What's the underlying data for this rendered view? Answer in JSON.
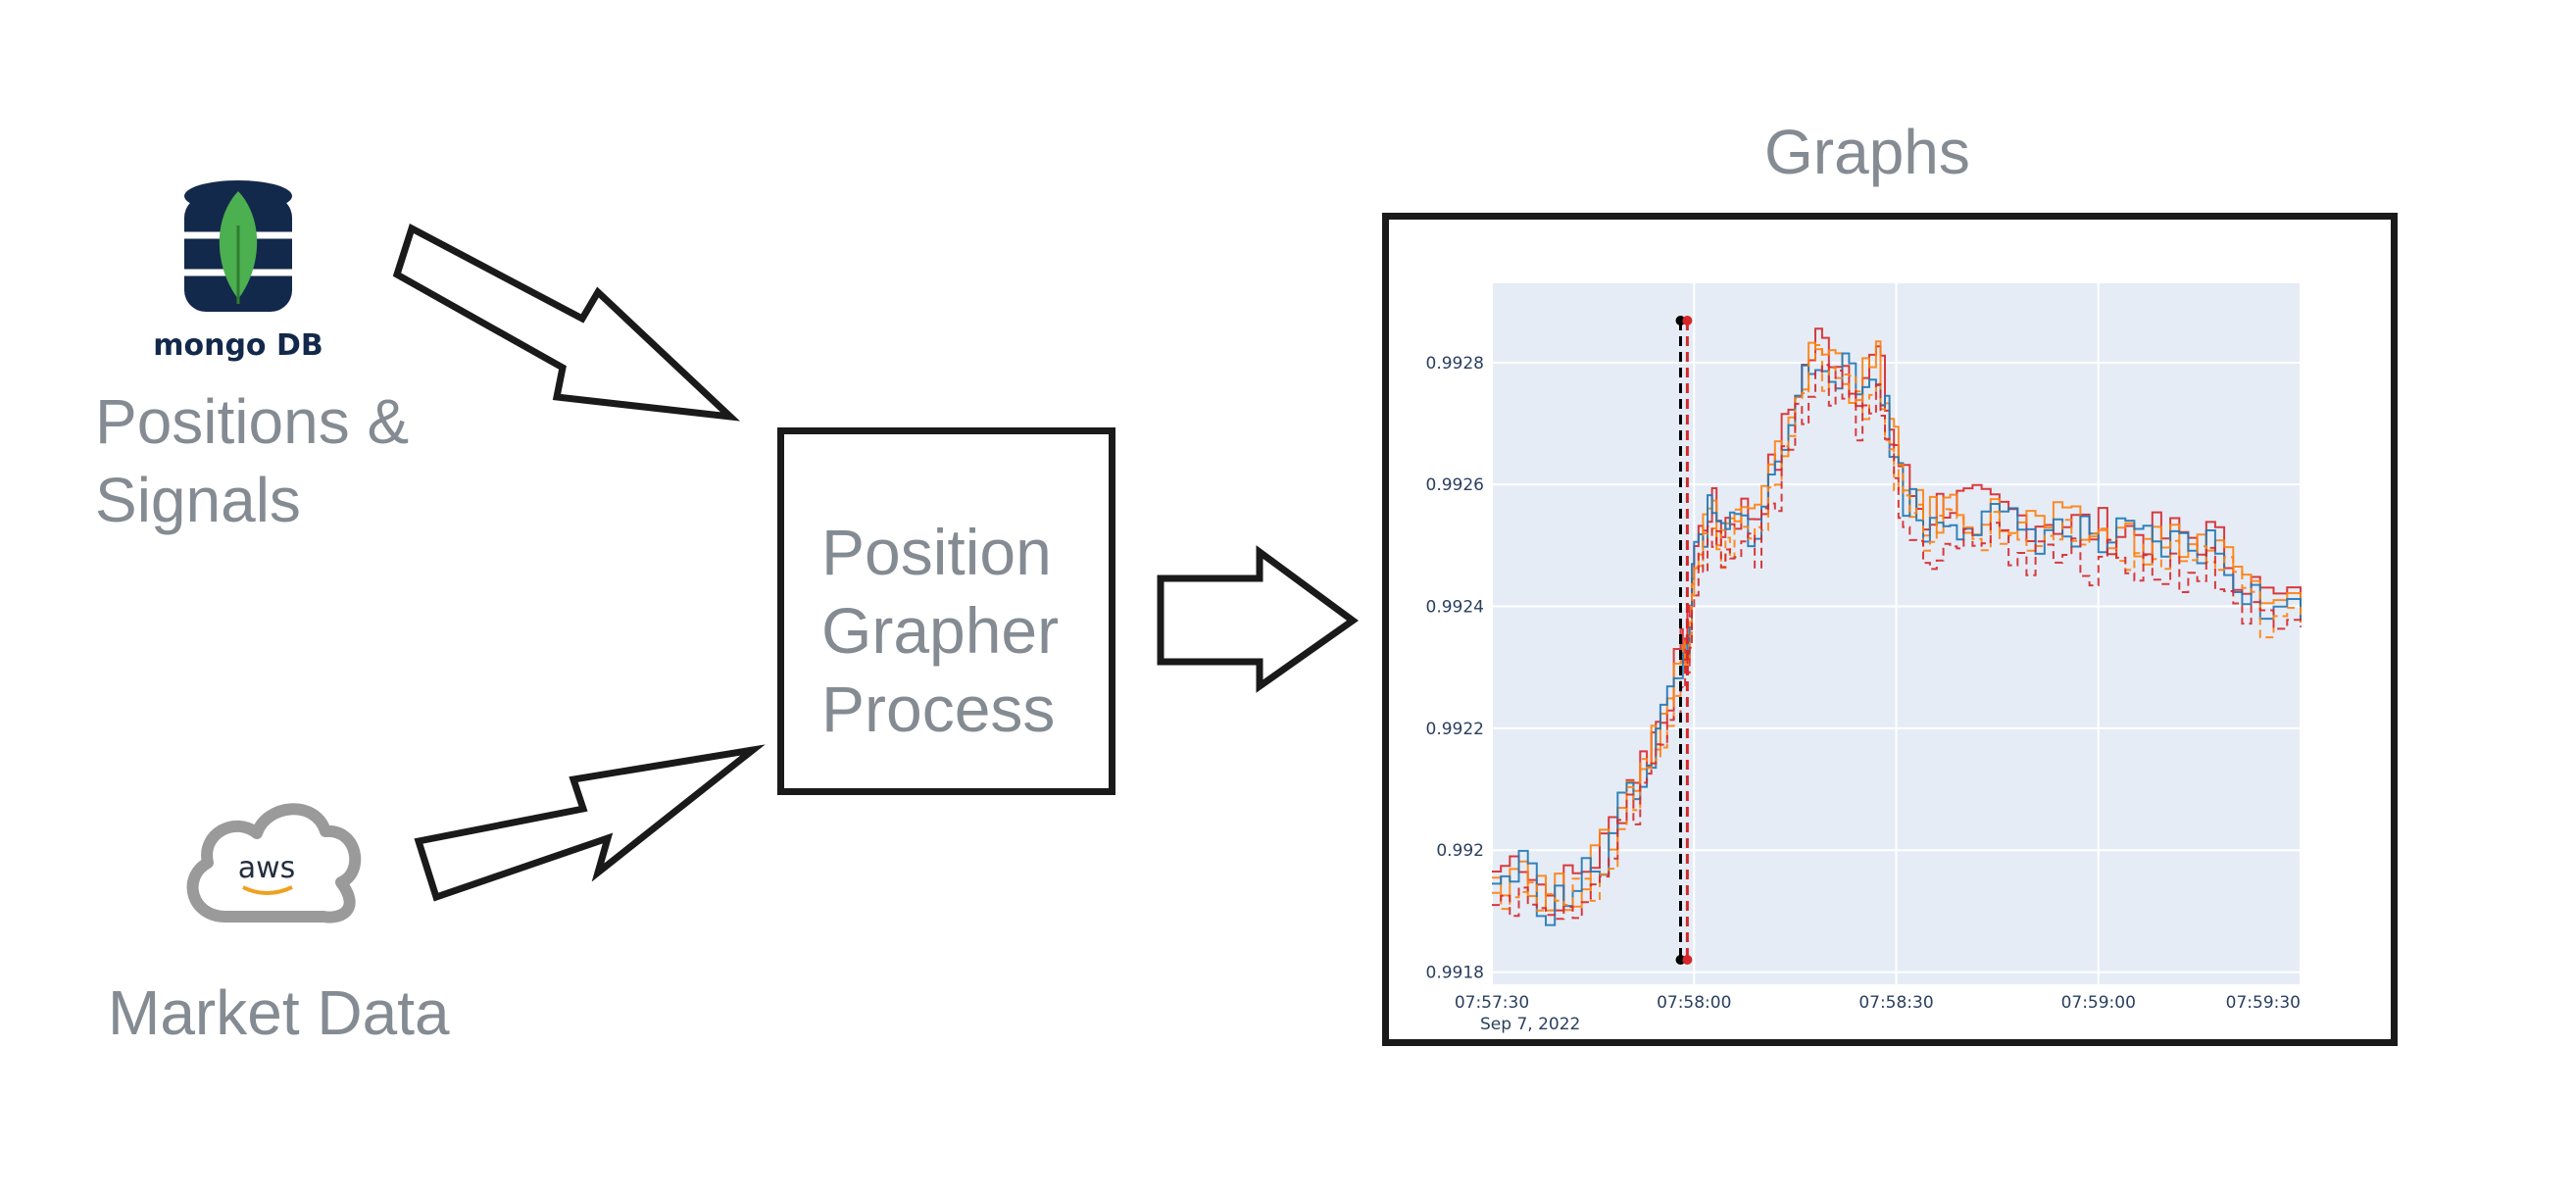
{
  "sources": {
    "positions_label": "Positions & Signals",
    "mongo_logo_text": "mongo DB",
    "market_label": "Market Data",
    "aws_logo_text": "aws",
    "mongo_icon": "database-leaf-icon",
    "aws_icon": "cloud-icon"
  },
  "process": {
    "label": "Position Grapher Process"
  },
  "output": {
    "title": "Graphs"
  },
  "colors": {
    "text": "#858b92",
    "arrow": "#1a1a1a",
    "plot_bg": "#e5ecf6",
    "mongo_navy": "#13294b",
    "mongo_green": "#4caf50"
  },
  "chart_data": {
    "type": "line",
    "title": "",
    "xlabel": "",
    "ylabel": "",
    "x_ticks": [
      "07:57:30",
      "07:58:00",
      "07:58:30",
      "07:59:00",
      "07:59:30"
    ],
    "x_tick_sublabel": "Sep 7, 2022",
    "y_ticks": [
      "0.9918",
      "0.992",
      "0.9922",
      "0.9924",
      "0.9926",
      "0.9928"
    ],
    "ylim": [
      0.99178,
      0.99293
    ],
    "vertical_markers": [
      {
        "x": "07:57:58",
        "color": "#000000",
        "style": "dashed"
      },
      {
        "x": "07:57:59",
        "color": "#d62728",
        "style": "dashed"
      }
    ],
    "series": [
      {
        "color": "#d62728",
        "style": "solid",
        "offset": 1.5e-05,
        "values": [
          [
            "07:57:30",
            0.99195
          ],
          [
            "07:57:34",
            0.99198
          ],
          [
            "07:57:38",
            0.99191
          ],
          [
            "07:57:42",
            0.99194
          ],
          [
            "07:57:46",
            0.99199
          ],
          [
            "07:57:50",
            0.9921
          ],
          [
            "07:57:53",
            0.99215
          ],
          [
            "07:57:55",
            0.99222
          ],
          [
            "07:57:58",
            0.99231
          ],
          [
            "07:57:59",
            0.99235
          ],
          [
            "07:58:00",
            0.99248
          ],
          [
            "07:58:02",
            0.99255
          ],
          [
            "07:58:04",
            0.99252
          ],
          [
            "07:58:06",
            0.99254
          ],
          [
            "07:58:09",
            0.99254
          ],
          [
            "07:58:12",
            0.99263
          ],
          [
            "07:58:15",
            0.99275
          ],
          [
            "07:58:18",
            0.99282
          ],
          [
            "07:58:21",
            0.9928
          ],
          [
            "07:58:24",
            0.99275
          ],
          [
            "07:58:27",
            0.9928
          ],
          [
            "07:58:29",
            0.99268
          ],
          [
            "07:58:31",
            0.99259
          ],
          [
            "07:58:34",
            0.99253
          ],
          [
            "07:58:37",
            0.99256
          ],
          [
            "07:58:40",
            0.99255
          ],
          [
            "07:58:44",
            0.99254
          ],
          [
            "07:58:48",
            0.99253
          ],
          [
            "07:58:52",
            0.99253
          ],
          [
            "07:58:56",
            0.99252
          ],
          [
            "07:59:00",
            0.99251
          ],
          [
            "07:59:04",
            0.99251
          ],
          [
            "07:59:08",
            0.9925
          ],
          [
            "07:59:12",
            0.9925
          ],
          [
            "07:59:16",
            0.9925
          ],
          [
            "07:59:20",
            0.99245
          ],
          [
            "07:59:24",
            0.9924
          ],
          [
            "07:59:30",
            0.99238
          ]
        ]
      },
      {
        "color": "#ff7f0e",
        "style": "solid",
        "offset": 5e-06,
        "values": [
          [
            "07:57:30",
            0.99195
          ],
          [
            "07:57:34",
            0.99198
          ],
          [
            "07:57:38",
            0.99191
          ],
          [
            "07:57:42",
            0.99194
          ],
          [
            "07:57:46",
            0.99199
          ],
          [
            "07:57:50",
            0.9921
          ],
          [
            "07:57:53",
            0.99215
          ],
          [
            "07:57:55",
            0.99222
          ],
          [
            "07:57:58",
            0.99231
          ],
          [
            "07:57:59",
            0.99235
          ],
          [
            "07:58:00",
            0.99248
          ],
          [
            "07:58:02",
            0.99255
          ],
          [
            "07:58:04",
            0.99252
          ],
          [
            "07:58:06",
            0.99254
          ],
          [
            "07:58:09",
            0.99254
          ],
          [
            "07:58:12",
            0.99263
          ],
          [
            "07:58:15",
            0.99275
          ],
          [
            "07:58:18",
            0.99282
          ],
          [
            "07:58:21",
            0.9928
          ],
          [
            "07:58:24",
            0.99275
          ],
          [
            "07:58:27",
            0.9928
          ],
          [
            "07:58:29",
            0.99268
          ],
          [
            "07:58:31",
            0.99259
          ],
          [
            "07:58:34",
            0.99253
          ],
          [
            "07:58:37",
            0.99256
          ],
          [
            "07:58:40",
            0.99255
          ],
          [
            "07:58:44",
            0.99254
          ],
          [
            "07:58:48",
            0.99253
          ],
          [
            "07:58:52",
            0.99253
          ],
          [
            "07:58:56",
            0.99252
          ],
          [
            "07:59:00",
            0.99251
          ],
          [
            "07:59:04",
            0.99251
          ],
          [
            "07:59:08",
            0.9925
          ],
          [
            "07:59:12",
            0.9925
          ],
          [
            "07:59:16",
            0.9925
          ],
          [
            "07:59:20",
            0.99245
          ],
          [
            "07:59:24",
            0.9924
          ],
          [
            "07:59:30",
            0.99238
          ]
        ]
      },
      {
        "color": "#1f77b4",
        "style": "solid",
        "offset": -5e-06,
        "values": [
          [
            "07:57:30",
            0.99195
          ],
          [
            "07:57:34",
            0.99198
          ],
          [
            "07:57:38",
            0.99191
          ],
          [
            "07:57:42",
            0.99194
          ],
          [
            "07:57:46",
            0.99199
          ],
          [
            "07:57:50",
            0.9921
          ],
          [
            "07:57:53",
            0.99215
          ],
          [
            "07:57:55",
            0.99222
          ],
          [
            "07:57:58",
            0.99231
          ],
          [
            "07:57:59",
            0.99235
          ],
          [
            "07:58:00",
            0.99248
          ],
          [
            "07:58:02",
            0.99255
          ],
          [
            "07:58:04",
            0.99252
          ],
          [
            "07:58:06",
            0.99254
          ],
          [
            "07:58:09",
            0.99254
          ],
          [
            "07:58:12",
            0.99263
          ],
          [
            "07:58:15",
            0.99275
          ],
          [
            "07:58:18",
            0.99282
          ],
          [
            "07:58:21",
            0.9928
          ],
          [
            "07:58:24",
            0.99275
          ],
          [
            "07:58:27",
            0.9928
          ],
          [
            "07:58:29",
            0.99268
          ],
          [
            "07:58:31",
            0.99259
          ],
          [
            "07:58:34",
            0.99253
          ],
          [
            "07:58:37",
            0.99256
          ],
          [
            "07:58:40",
            0.99255
          ],
          [
            "07:58:44",
            0.99254
          ],
          [
            "07:58:48",
            0.99253
          ],
          [
            "07:58:52",
            0.99253
          ],
          [
            "07:58:56",
            0.99252
          ],
          [
            "07:59:00",
            0.99251
          ],
          [
            "07:59:04",
            0.99251
          ],
          [
            "07:59:08",
            0.9925
          ],
          [
            "07:59:12",
            0.9925
          ],
          [
            "07:59:16",
            0.9925
          ],
          [
            "07:59:20",
            0.99245
          ],
          [
            "07:59:24",
            0.9924
          ],
          [
            "07:59:30",
            0.99238
          ]
        ]
      },
      {
        "color": "#ff7f0e",
        "style": "dashed",
        "offset": -2e-05,
        "values": [
          [
            "07:57:30",
            0.99195
          ],
          [
            "07:57:34",
            0.99198
          ],
          [
            "07:57:38",
            0.99191
          ],
          [
            "07:57:42",
            0.99194
          ],
          [
            "07:57:46",
            0.99199
          ],
          [
            "07:57:50",
            0.9921
          ],
          [
            "07:57:53",
            0.99215
          ],
          [
            "07:57:55",
            0.99222
          ],
          [
            "07:57:58",
            0.99231
          ],
          [
            "07:57:59",
            0.99235
          ],
          [
            "07:58:00",
            0.99248
          ],
          [
            "07:58:02",
            0.99255
          ],
          [
            "07:58:04",
            0.99252
          ],
          [
            "07:58:06",
            0.99254
          ],
          [
            "07:58:09",
            0.99254
          ],
          [
            "07:58:12",
            0.99263
          ],
          [
            "07:58:15",
            0.99275
          ],
          [
            "07:58:18",
            0.99282
          ],
          [
            "07:58:21",
            0.9928
          ],
          [
            "07:58:24",
            0.99275
          ],
          [
            "07:58:27",
            0.9928
          ],
          [
            "07:58:29",
            0.99268
          ],
          [
            "07:58:31",
            0.99259
          ],
          [
            "07:58:34",
            0.99253
          ],
          [
            "07:58:37",
            0.99256
          ],
          [
            "07:58:40",
            0.99255
          ],
          [
            "07:58:44",
            0.99254
          ],
          [
            "07:58:48",
            0.99253
          ],
          [
            "07:58:52",
            0.99253
          ],
          [
            "07:58:56",
            0.99252
          ],
          [
            "07:59:00",
            0.99251
          ],
          [
            "07:59:04",
            0.99251
          ],
          [
            "07:59:08",
            0.9925
          ],
          [
            "07:59:12",
            0.9925
          ],
          [
            "07:59:16",
            0.9925
          ],
          [
            "07:59:20",
            0.99245
          ],
          [
            "07:59:24",
            0.9924
          ],
          [
            "07:59:30",
            0.99238
          ]
        ]
      },
      {
        "color": "#d62728",
        "style": "dashed",
        "offset": -4e-05,
        "values": [
          [
            "07:57:30",
            0.99195
          ],
          [
            "07:57:34",
            0.99198
          ],
          [
            "07:57:38",
            0.99191
          ],
          [
            "07:57:42",
            0.99194
          ],
          [
            "07:57:46",
            0.99199
          ],
          [
            "07:57:50",
            0.9921
          ],
          [
            "07:57:53",
            0.99215
          ],
          [
            "07:57:55",
            0.99222
          ],
          [
            "07:57:58",
            0.99231
          ],
          [
            "07:57:59",
            0.99235
          ],
          [
            "07:58:00",
            0.99248
          ],
          [
            "07:58:02",
            0.99255
          ],
          [
            "07:58:04",
            0.99252
          ],
          [
            "07:58:06",
            0.99254
          ],
          [
            "07:58:09",
            0.99254
          ],
          [
            "07:58:12",
            0.99263
          ],
          [
            "07:58:15",
            0.99275
          ],
          [
            "07:58:18",
            0.99282
          ],
          [
            "07:58:21",
            0.9928
          ],
          [
            "07:58:24",
            0.99275
          ],
          [
            "07:58:27",
            0.9928
          ],
          [
            "07:58:29",
            0.99268
          ],
          [
            "07:58:31",
            0.99259
          ],
          [
            "07:58:34",
            0.99253
          ],
          [
            "07:58:37",
            0.99256
          ],
          [
            "07:58:40",
            0.99255
          ],
          [
            "07:58:44",
            0.99254
          ],
          [
            "07:58:48",
            0.99253
          ],
          [
            "07:58:52",
            0.99253
          ],
          [
            "07:58:56",
            0.99252
          ],
          [
            "07:59:00",
            0.99251
          ],
          [
            "07:59:04",
            0.99251
          ],
          [
            "07:59:08",
            0.9925
          ],
          [
            "07:59:12",
            0.9925
          ],
          [
            "07:59:16",
            0.9925
          ],
          [
            "07:59:20",
            0.99245
          ],
          [
            "07:59:24",
            0.9924
          ],
          [
            "07:59:30",
            0.99238
          ]
        ]
      }
    ]
  }
}
